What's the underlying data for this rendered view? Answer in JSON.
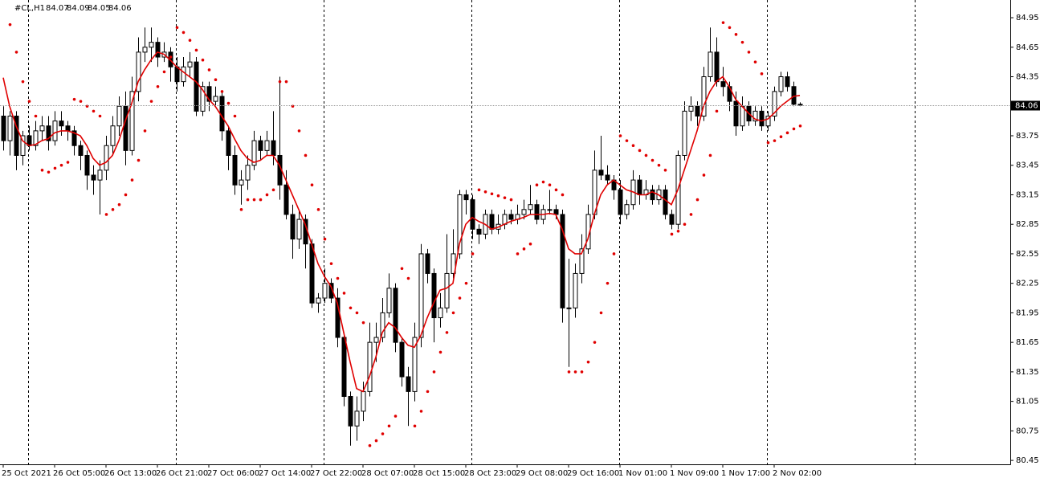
{
  "chart_data": {
    "type": "candlestick",
    "title": "#CL,H1",
    "x_labels": [
      "25 Oct 2021",
      "26 Oct 05:00",
      "26 Oct 13:00",
      "26 Oct 21:00",
      "27 Oct 06:00",
      "27 Oct 14:00",
      "27 Oct 22:00",
      "28 Oct 07:00",
      "28 Oct 15:00",
      "28 Oct 23:00",
      "29 Oct 08:00",
      "29 Oct 16:00",
      "1 Nov 01:00",
      "1 Nov 09:00",
      "1 Nov 17:00",
      "2 Nov 02:00"
    ],
    "ylim": [
      80.41,
      85.13
    ],
    "yticks": [
      84.95,
      84.65,
      84.35,
      83.75,
      83.45,
      83.15,
      82.85,
      82.55,
      82.25,
      81.95,
      81.65,
      81.35,
      81.05,
      80.75,
      80.45
    ],
    "up_color": "#ffffff",
    "down_color": "#000000",
    "line_color": "#e00000",
    "ohlc": [
      [
        83.95,
        84.05,
        83.6,
        83.7
      ],
      [
        83.7,
        84.0,
        83.55,
        83.95
      ],
      [
        83.95,
        84.0,
        83.4,
        83.55
      ],
      [
        83.55,
        83.8,
        83.45,
        83.75
      ],
      [
        83.75,
        83.85,
        83.6,
        83.65
      ],
      [
        83.65,
        83.9,
        83.6,
        83.8
      ],
      [
        83.8,
        83.95,
        83.7,
        83.85
      ],
      [
        83.85,
        83.95,
        83.6,
        83.7
      ],
      [
        83.7,
        84.0,
        83.65,
        83.9
      ],
      [
        83.9,
        84.0,
        83.75,
        83.85
      ],
      [
        83.85,
        83.9,
        83.7,
        83.8
      ],
      [
        83.8,
        83.85,
        83.55,
        83.65
      ],
      [
        83.65,
        83.7,
        83.4,
        83.55
      ],
      [
        83.55,
        83.6,
        83.2,
        83.35
      ],
      [
        83.35,
        83.45,
        83.15,
        83.3
      ],
      [
        83.3,
        83.5,
        82.95,
        83.4
      ],
      [
        83.4,
        83.75,
        83.3,
        83.65
      ],
      [
        83.65,
        83.95,
        83.55,
        83.85
      ],
      [
        83.85,
        84.15,
        83.75,
        84.05
      ],
      [
        84.05,
        84.2,
        83.45,
        83.6
      ],
      [
        83.6,
        84.35,
        83.55,
        84.2
      ],
      [
        84.2,
        84.75,
        84.1,
        84.6
      ],
      [
        84.6,
        84.85,
        84.5,
        84.65
      ],
      [
        84.65,
        84.85,
        84.5,
        84.7
      ],
      [
        84.7,
        84.75,
        84.45,
        84.55
      ],
      [
        84.55,
        84.7,
        84.5,
        84.6
      ],
      [
        84.6,
        84.65,
        84.3,
        84.45
      ],
      [
        84.45,
        84.55,
        84.2,
        84.3
      ],
      [
        84.3,
        84.55,
        84.25,
        84.45
      ],
      [
        84.45,
        84.6,
        84.35,
        84.5
      ],
      [
        84.5,
        84.55,
        83.95,
        84.0
      ],
      [
        84.0,
        84.3,
        83.95,
        84.25
      ],
      [
        84.25,
        84.3,
        84.0,
        84.1
      ],
      [
        84.1,
        84.25,
        84.05,
        84.15
      ],
      [
        84.15,
        84.2,
        83.7,
        83.8
      ],
      [
        83.8,
        83.85,
        83.4,
        83.55
      ],
      [
        83.55,
        83.65,
        83.15,
        83.25
      ],
      [
        83.25,
        83.4,
        83.05,
        83.3
      ],
      [
        83.3,
        83.55,
        83.2,
        83.45
      ],
      [
        83.45,
        83.8,
        83.4,
        83.7
      ],
      [
        83.7,
        83.75,
        83.5,
        83.6
      ],
      [
        83.6,
        83.8,
        83.55,
        83.7
      ],
      [
        83.7,
        84.0,
        83.45,
        83.55
      ],
      [
        83.55,
        84.35,
        83.1,
        83.25
      ],
      [
        83.25,
        83.4,
        82.9,
        82.95
      ],
      [
        82.95,
        83.05,
        82.5,
        82.7
      ],
      [
        82.7,
        83.0,
        82.6,
        82.9
      ],
      [
        82.9,
        82.95,
        82.4,
        82.65
      ],
      [
        82.65,
        82.7,
        82.0,
        82.05
      ],
      [
        82.05,
        82.15,
        81.95,
        82.1
      ],
      [
        82.1,
        82.4,
        82.05,
        82.25
      ],
      [
        82.25,
        82.3,
        82.05,
        82.1
      ],
      [
        82.1,
        82.2,
        81.6,
        81.7
      ],
      [
        81.7,
        81.75,
        81.0,
        81.1
      ],
      [
        81.1,
        81.15,
        80.6,
        80.8
      ],
      [
        80.8,
        81.1,
        80.65,
        80.95
      ],
      [
        80.95,
        81.25,
        80.85,
        81.15
      ],
      [
        81.15,
        81.85,
        81.1,
        81.65
      ],
      [
        81.65,
        81.85,
        81.45,
        81.7
      ],
      [
        81.7,
        82.1,
        81.65,
        81.95
      ],
      [
        81.95,
        82.35,
        81.9,
        82.2
      ],
      [
        82.2,
        82.25,
        81.55,
        81.65
      ],
      [
        81.65,
        81.7,
        81.2,
        81.3
      ],
      [
        81.3,
        81.4,
        80.8,
        81.15
      ],
      [
        81.15,
        81.85,
        81.05,
        81.7
      ],
      [
        81.7,
        82.65,
        81.6,
        82.55
      ],
      [
        82.55,
        82.6,
        82.25,
        82.35
      ],
      [
        82.35,
        82.4,
        81.65,
        81.9
      ],
      [
        81.9,
        82.15,
        81.8,
        82.0
      ],
      [
        82.0,
        82.75,
        81.95,
        82.35
      ],
      [
        82.35,
        82.8,
        82.3,
        82.55
      ],
      [
        82.55,
        83.2,
        82.5,
        83.15
      ],
      [
        83.15,
        83.2,
        82.95,
        83.1
      ],
      [
        83.1,
        83.15,
        82.7,
        82.8
      ],
      [
        82.8,
        82.85,
        82.65,
        82.75
      ],
      [
        82.75,
        83.0,
        82.7,
        82.95
      ],
      [
        82.95,
        83.0,
        82.75,
        82.8
      ],
      [
        82.8,
        82.95,
        82.75,
        82.85
      ],
      [
        82.85,
        83.0,
        82.8,
        82.95
      ],
      [
        82.95,
        83.0,
        82.85,
        82.9
      ],
      [
        82.9,
        83.05,
        82.85,
        82.95
      ],
      [
        82.95,
        83.1,
        82.9,
        83.0
      ],
      [
        83.0,
        83.25,
        82.95,
        83.05
      ],
      [
        83.05,
        83.1,
        82.85,
        82.9
      ],
      [
        82.9,
        83.05,
        82.85,
        83.0
      ],
      [
        83.0,
        83.2,
        82.95,
        83.0
      ],
      [
        83.0,
        83.05,
        82.9,
        82.95
      ],
      [
        82.95,
        83.0,
        81.85,
        82.0
      ],
      [
        82.0,
        82.5,
        81.4,
        82.0
      ],
      [
        82.0,
        82.45,
        81.9,
        82.35
      ],
      [
        82.35,
        82.75,
        82.25,
        82.6
      ],
      [
        82.6,
        83.05,
        82.55,
        82.95
      ],
      [
        82.95,
        83.6,
        82.9,
        83.4
      ],
      [
        83.4,
        83.75,
        83.3,
        83.35
      ],
      [
        83.35,
        83.45,
        83.25,
        83.3
      ],
      [
        83.3,
        83.35,
        83.1,
        83.2
      ],
      [
        83.2,
        83.3,
        82.85,
        82.95
      ],
      [
        82.95,
        83.1,
        82.9,
        83.05
      ],
      [
        83.05,
        83.4,
        83.0,
        83.3
      ],
      [
        83.3,
        83.35,
        83.05,
        83.15
      ],
      [
        83.15,
        83.3,
        83.1,
        83.2
      ],
      [
        83.2,
        83.25,
        83.05,
        83.1
      ],
      [
        83.1,
        83.25,
        83.05,
        83.2
      ],
      [
        83.2,
        83.25,
        82.9,
        82.95
      ],
      [
        82.95,
        83.0,
        82.8,
        82.85
      ],
      [
        82.85,
        83.6,
        82.8,
        83.55
      ],
      [
        83.55,
        84.1,
        83.5,
        84.0
      ],
      [
        84.0,
        84.15,
        83.9,
        84.05
      ],
      [
        84.05,
        84.1,
        83.85,
        83.95
      ],
      [
        83.95,
        84.45,
        83.9,
        84.35
      ],
      [
        84.35,
        84.85,
        84.3,
        84.6
      ],
      [
        84.6,
        84.75,
        84.25,
        84.3
      ],
      [
        84.3,
        84.45,
        84.15,
        84.25
      ],
      [
        84.25,
        84.3,
        84.0,
        84.1
      ],
      [
        84.1,
        84.2,
        83.75,
        83.85
      ],
      [
        83.85,
        84.15,
        83.8,
        84.05
      ],
      [
        84.05,
        84.1,
        83.85,
        83.9
      ],
      [
        83.9,
        84.05,
        83.85,
        84.0
      ],
      [
        84.0,
        84.05,
        83.8,
        83.85
      ],
      [
        83.85,
        84.0,
        83.8,
        83.95
      ],
      [
        83.95,
        84.25,
        83.9,
        84.2
      ],
      [
        84.2,
        84.4,
        84.15,
        84.35
      ],
      [
        84.35,
        84.4,
        84.2,
        84.25
      ],
      [
        84.25,
        84.3,
        84.05,
        84.07
      ],
      [
        84.07,
        84.09,
        84.05,
        84.06
      ]
    ],
    "ma_values": [
      84.34,
      84.05,
      83.85,
      83.7,
      83.65,
      83.66,
      83.7,
      83.72,
      83.78,
      83.8,
      83.8,
      83.78,
      83.75,
      83.65,
      83.52,
      83.45,
      83.48,
      83.55,
      83.7,
      83.9,
      84.08,
      84.3,
      84.42,
      84.52,
      84.6,
      84.58,
      84.52,
      84.45,
      84.4,
      84.35,
      84.3,
      84.22,
      84.12,
      84.05,
      83.95,
      83.85,
      83.72,
      83.6,
      83.52,
      83.48,
      83.5,
      83.55,
      83.55,
      83.45,
      83.3,
      83.15,
      83.0,
      82.85,
      82.65,
      82.45,
      82.32,
      82.22,
      82.05,
      81.75,
      81.45,
      81.18,
      81.15,
      81.3,
      81.5,
      81.75,
      81.85,
      81.8,
      81.7,
      81.62,
      81.6,
      81.72,
      81.9,
      82.05,
      82.18,
      82.2,
      82.25,
      82.65,
      82.85,
      82.92,
      82.88,
      82.85,
      82.8,
      82.82,
      82.85,
      82.88,
      82.9,
      82.92,
      82.95,
      82.95,
      82.95,
      82.96,
      82.95,
      82.8,
      82.6,
      82.55,
      82.55,
      82.7,
      82.95,
      83.15,
      83.25,
      83.3,
      83.25,
      83.2,
      83.18,
      83.15,
      83.15,
      83.18,
      83.15,
      83.1,
      83.05,
      83.2,
      83.4,
      83.6,
      83.8,
      84.05,
      84.2,
      84.3,
      84.35,
      84.25,
      84.12,
      84.05,
      83.98,
      83.92,
      83.9,
      83.92,
      83.98,
      84.05,
      84.1,
      84.15,
      84.16
    ],
    "sar_values": [
      null,
      84.88,
      84.6,
      84.3,
      84.1,
      83.95,
      83.4,
      83.38,
      83.42,
      83.45,
      83.48,
      84.12,
      84.1,
      84.05,
      84.0,
      83.95,
      82.95,
      83.0,
      83.05,
      83.15,
      83.3,
      83.5,
      83.8,
      84.1,
      84.25,
      84.4,
      84.55,
      84.85,
      84.8,
      84.72,
      84.62,
      84.52,
      84.42,
      84.32,
      84.2,
      84.08,
      83.95,
      83.0,
      83.1,
      83.1,
      83.1,
      83.15,
      83.2,
      84.3,
      84.3,
      84.05,
      83.8,
      83.55,
      83.25,
      83.0,
      82.7,
      82.45,
      82.3,
      82.15,
      82.0,
      81.95,
      81.85,
      80.6,
      80.65,
      80.72,
      80.8,
      80.9,
      82.4,
      82.3,
      80.8,
      80.95,
      81.15,
      81.35,
      81.55,
      81.75,
      81.95,
      82.1,
      82.25,
      82.55,
      83.2,
      83.18,
      83.16,
      83.14,
      83.12,
      83.1,
      82.55,
      82.6,
      82.65,
      83.25,
      83.28,
      83.25,
      83.2,
      83.15,
      81.35,
      81.35,
      81.35,
      81.45,
      81.65,
      81.95,
      82.25,
      82.55,
      83.75,
      83.7,
      83.65,
      83.6,
      83.55,
      83.5,
      83.45,
      83.4,
      82.75,
      82.78,
      82.85,
      82.95,
      83.1,
      83.35,
      83.55,
      84.0,
      84.9,
      84.85,
      84.78,
      84.7,
      84.6,
      84.5,
      84.38,
      83.68,
      83.7,
      83.74,
      83.78,
      83.82,
      83.85
    ]
  }
}
